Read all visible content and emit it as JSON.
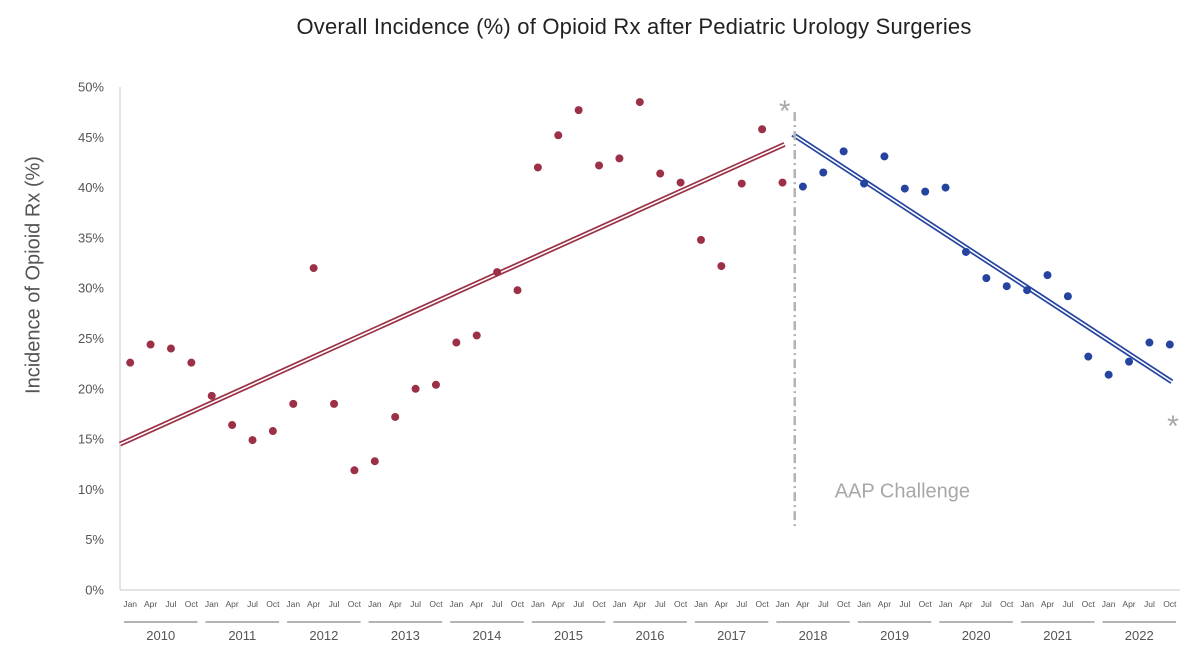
{
  "chart_data": {
    "type": "scatter",
    "title": "Overall Incidence (%) of Opioid Rx after Pediatric Urology Surgeries",
    "ylabel": "Incidence of Opioid Rx (%)",
    "xlabel": "",
    "ylim": [
      0,
      50
    ],
    "y_ticks": [
      "0%",
      "5%",
      "10%",
      "15%",
      "20%",
      "25%",
      "30%",
      "35%",
      "40%",
      "45%",
      "50%"
    ],
    "quarter_labels": [
      "Jan",
      "Apr",
      "Jul",
      "Oct"
    ],
    "years": [
      "2010",
      "2011",
      "2012",
      "2013",
      "2014",
      "2015",
      "2016",
      "2017",
      "2018",
      "2019",
      "2020",
      "2021",
      "2022"
    ],
    "grid": false,
    "series": [
      {
        "color": "#9b3046",
        "start_index": 0,
        "values": [
          22.6,
          24.4,
          24.0,
          22.6,
          19.3,
          16.4,
          14.9,
          15.8,
          18.5,
          32.0,
          18.5,
          11.9,
          12.8,
          17.2,
          20.0,
          20.4,
          24.6,
          25.3,
          31.6,
          29.8,
          42.0,
          45.2,
          47.7,
          42.2,
          42.9,
          48.5,
          41.4,
          40.5,
          34.8,
          32.2,
          40.4,
          45.8,
          40.5
        ],
        "trend": [
          14.5,
          44.3
        ]
      },
      {
        "color": "#25449f",
        "start_index": 33,
        "values": [
          40.1,
          41.5,
          43.6,
          40.4,
          43.1,
          39.9,
          39.6,
          40.0,
          33.6,
          31.0,
          30.2,
          29.8,
          31.3,
          29.2,
          23.2,
          21.4,
          22.7,
          24.6,
          24.4
        ],
        "trend": [
          45.3,
          20.7
        ]
      }
    ],
    "annotations": {
      "challenge_label": "AAP Challenge",
      "challenge_index": 32.6,
      "star": "*"
    }
  }
}
